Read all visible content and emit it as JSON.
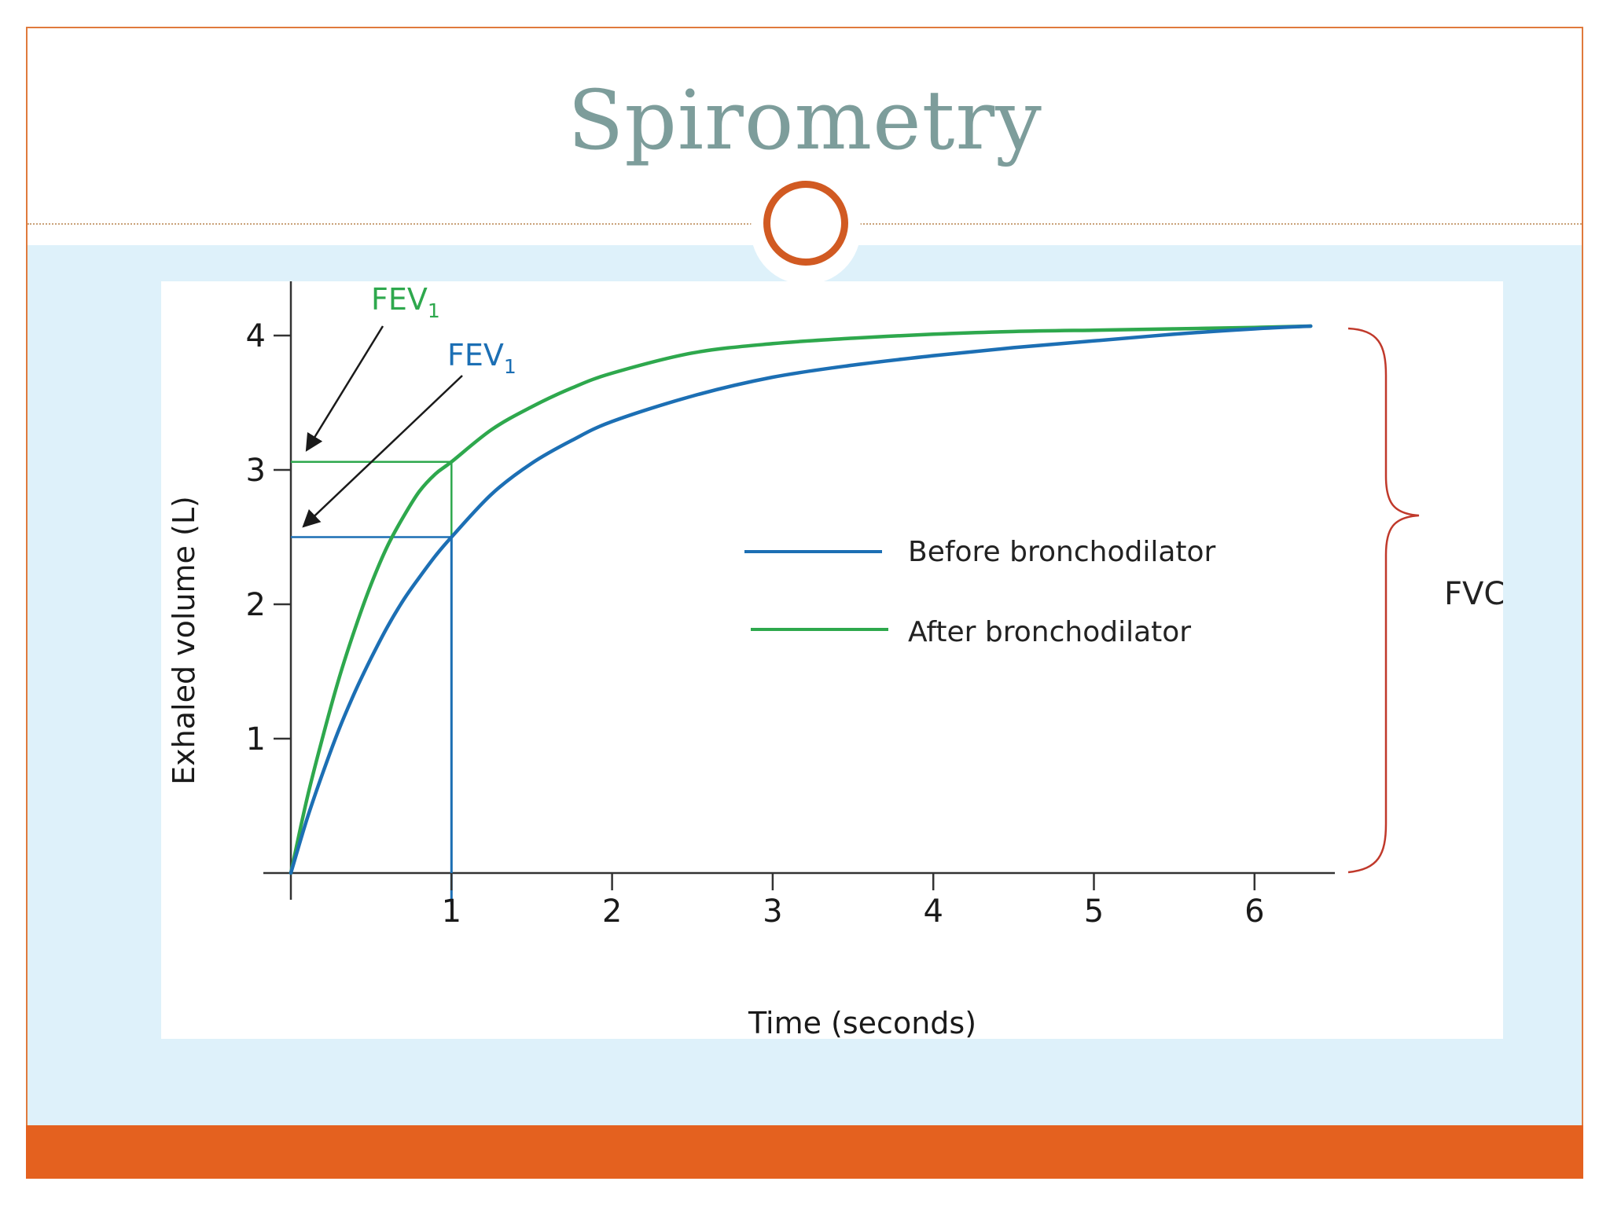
{
  "slide": {
    "title": "Spirometry",
    "colors": {
      "title": "#7d9d9b",
      "frame": "#e07a3c",
      "band": "#def1fa",
      "footer": "#e4611f",
      "knob": "#d15a22"
    }
  },
  "chart_data": {
    "type": "line",
    "xlabel": "Time (seconds)",
    "ylabel": "Exhaled volume  (L)",
    "xlim": [
      0,
      6.5
    ],
    "ylim": [
      0,
      4.4
    ],
    "xticks": [
      "1",
      "2",
      "3",
      "4",
      "5",
      "6"
    ],
    "yticks": [
      "1",
      "2",
      "3",
      "4"
    ],
    "series": [
      {
        "name": "Before bronchodilator",
        "color": "#1c6fb4",
        "x": [
          0,
          0.1,
          0.2,
          0.3,
          0.4,
          0.5,
          0.6,
          0.7,
          0.8,
          0.9,
          1.0,
          1.25,
          1.5,
          1.75,
          2.0,
          2.5,
          3.0,
          3.5,
          4.0,
          4.5,
          5.0,
          5.5,
          6.0,
          6.35
        ],
        "y": [
          0,
          0.4,
          0.75,
          1.07,
          1.35,
          1.6,
          1.83,
          2.03,
          2.2,
          2.36,
          2.5,
          2.82,
          3.05,
          3.22,
          3.36,
          3.55,
          3.69,
          3.78,
          3.85,
          3.91,
          3.96,
          4.01,
          4.05,
          4.07
        ]
      },
      {
        "name": "After bronchodilator",
        "color": "#2ea84d",
        "x": [
          0,
          0.1,
          0.2,
          0.3,
          0.4,
          0.5,
          0.6,
          0.7,
          0.8,
          0.9,
          1.0,
          1.25,
          1.5,
          1.75,
          2.0,
          2.5,
          3.0,
          3.5,
          4.0,
          4.5,
          5.0,
          5.5,
          6.0,
          6.35
        ],
        "y": [
          0,
          0.55,
          1.02,
          1.45,
          1.82,
          2.15,
          2.43,
          2.65,
          2.84,
          2.97,
          3.06,
          3.3,
          3.47,
          3.61,
          3.72,
          3.87,
          3.94,
          3.98,
          4.01,
          4.03,
          4.04,
          4.05,
          4.06,
          4.07
        ]
      }
    ],
    "annotations": {
      "fev1_after": {
        "label": "FEV",
        "sub": "1",
        "value": 3.06,
        "at_time": 1,
        "color": "#2ea84d"
      },
      "fev1_before": {
        "label": "FEV",
        "sub": "1",
        "value": 2.5,
        "at_time": 1,
        "color": "#1c6fb4"
      },
      "fvc": {
        "label": "FVC",
        "value": 4.07,
        "color": "#c0392b"
      }
    },
    "legend": {
      "placement": "center-right"
    }
  }
}
